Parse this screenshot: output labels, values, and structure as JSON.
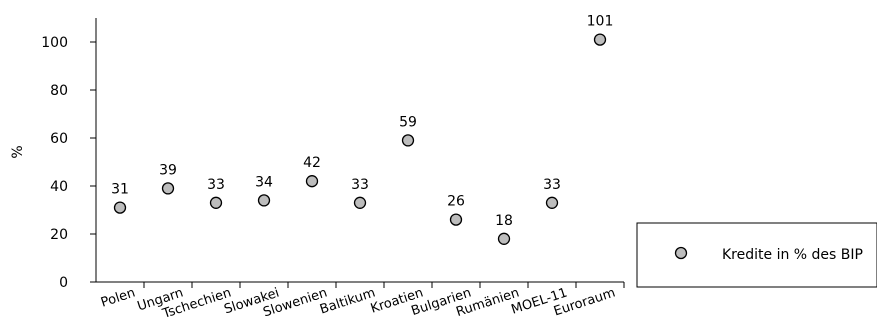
{
  "chart_data": {
    "type": "scatter",
    "categories": [
      "Polen",
      "Ungarn",
      "Tschechien",
      "Slowakei",
      "Slowenien",
      "Baltikum",
      "Kroatien",
      "Bulgarien",
      "Rumänien",
      "MOEL-11",
      "Euroraum"
    ],
    "series": [
      {
        "name": "Kredite in % des BIP",
        "values": [
          31,
          39,
          33,
          34,
          42,
          33,
          59,
          26,
          18,
          33,
          101
        ]
      }
    ],
    "data_labels": [
      "31",
      "39",
      "33",
      "34",
      "42",
      "33",
      "59",
      "26",
      "18",
      "33",
      "101"
    ],
    "ylabel": "%",
    "ylim": [
      0,
      110
    ],
    "yticks": [
      "0",
      "20",
      "40",
      "60",
      "80",
      "100"
    ],
    "grid": false,
    "legend_position": "right",
    "marker_fill": "#bdbdbd",
    "marker_stroke": "#000000"
  }
}
